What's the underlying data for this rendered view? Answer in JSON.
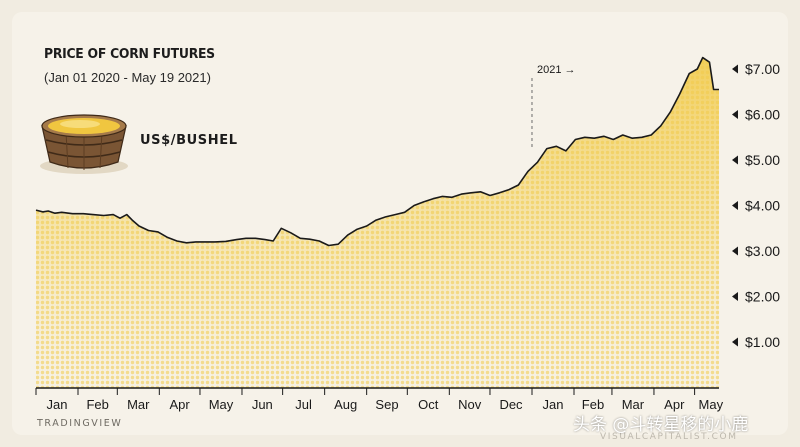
{
  "chart_data": {
    "type": "area",
    "title": "PRICE OF CORN FUTURES",
    "subtitle": "(Jan 01 2020 - May 19 2021)",
    "ylabel": "US$/BUSHEL",
    "x_tick_labels": [
      "Jan",
      "Feb",
      "Mar",
      "Apr",
      "May",
      "Jun",
      "Jul",
      "Aug",
      "Sep",
      "Oct",
      "Nov",
      "Dec",
      "Jan",
      "Feb",
      "Mar",
      "Apr",
      "May"
    ],
    "y_tick_labels": [
      "$1.00",
      "$2.00",
      "$3.00",
      "$4.00",
      "$5.00",
      "$6.00",
      "$7.00"
    ],
    "y_ticks": [
      1,
      2,
      3,
      4,
      5,
      6,
      7
    ],
    "ylim": [
      0,
      7.6
    ],
    "xlim": [
      "2020-01-01",
      "2021-05-19"
    ],
    "annotation": {
      "label": "2021 →",
      "x": "2021-01-01"
    },
    "grid": false,
    "line_color": "#1a1a1a",
    "fill_color_top": "#f2cd55",
    "fill_color_bottom": "#f7ecc9",
    "series": [
      {
        "x": [
          "2020-01-01",
          "2020-01-06",
          "2020-01-10",
          "2020-01-15",
          "2020-01-20",
          "2020-01-28",
          "2020-02-05",
          "2020-02-12",
          "2020-02-20",
          "2020-02-27",
          "2020-03-03",
          "2020-03-08",
          "2020-03-12",
          "2020-03-17",
          "2020-03-24",
          "2020-03-31",
          "2020-04-07",
          "2020-04-14",
          "2020-04-21",
          "2020-04-28",
          "2020-05-05",
          "2020-05-12",
          "2020-05-20",
          "2020-05-28",
          "2020-06-04",
          "2020-06-11",
          "2020-06-18",
          "2020-06-24",
          "2020-06-30",
          "2020-07-07",
          "2020-07-14",
          "2020-07-21",
          "2020-07-28",
          "2020-08-04",
          "2020-08-11",
          "2020-08-18",
          "2020-08-25",
          "2020-09-01",
          "2020-09-08",
          "2020-09-15",
          "2020-09-22",
          "2020-09-29",
          "2020-10-06",
          "2020-10-13",
          "2020-10-20",
          "2020-10-27",
          "2020-11-03",
          "2020-11-10",
          "2020-11-17",
          "2020-11-24",
          "2020-12-01",
          "2020-12-08",
          "2020-12-15",
          "2020-12-22",
          "2020-12-29",
          "2021-01-05",
          "2021-01-12",
          "2021-01-19",
          "2021-01-26",
          "2021-02-02",
          "2021-02-09",
          "2021-02-16",
          "2021-02-23",
          "2021-03-02",
          "2021-03-09",
          "2021-03-16",
          "2021-03-23",
          "2021-03-30",
          "2021-04-06",
          "2021-04-13",
          "2021-04-20",
          "2021-04-27",
          "2021-05-03",
          "2021-05-07",
          "2021-05-12",
          "2021-05-15",
          "2021-05-19"
        ],
        "y": [
          3.9,
          3.86,
          3.88,
          3.83,
          3.85,
          3.82,
          3.82,
          3.8,
          3.78,
          3.8,
          3.72,
          3.8,
          3.68,
          3.55,
          3.45,
          3.42,
          3.3,
          3.22,
          3.18,
          3.2,
          3.2,
          3.2,
          3.21,
          3.25,
          3.28,
          3.28,
          3.25,
          3.22,
          3.5,
          3.4,
          3.28,
          3.26,
          3.22,
          3.12,
          3.15,
          3.35,
          3.48,
          3.55,
          3.68,
          3.75,
          3.8,
          3.85,
          4.0,
          4.08,
          4.15,
          4.2,
          4.18,
          4.25,
          4.28,
          4.3,
          4.22,
          4.28,
          4.35,
          4.45,
          4.75,
          4.95,
          5.25,
          5.3,
          5.2,
          5.45,
          5.5,
          5.48,
          5.52,
          5.45,
          5.55,
          5.48,
          5.5,
          5.55,
          5.75,
          6.05,
          6.45,
          6.9,
          7.0,
          7.25,
          7.15,
          6.55,
          6.55
        ]
      }
    ]
  },
  "source": "TRADINGVIEW",
  "credit": "VISUALCAPITALIST.COM",
  "watermark": "头条 @斗转星移的小鹿"
}
